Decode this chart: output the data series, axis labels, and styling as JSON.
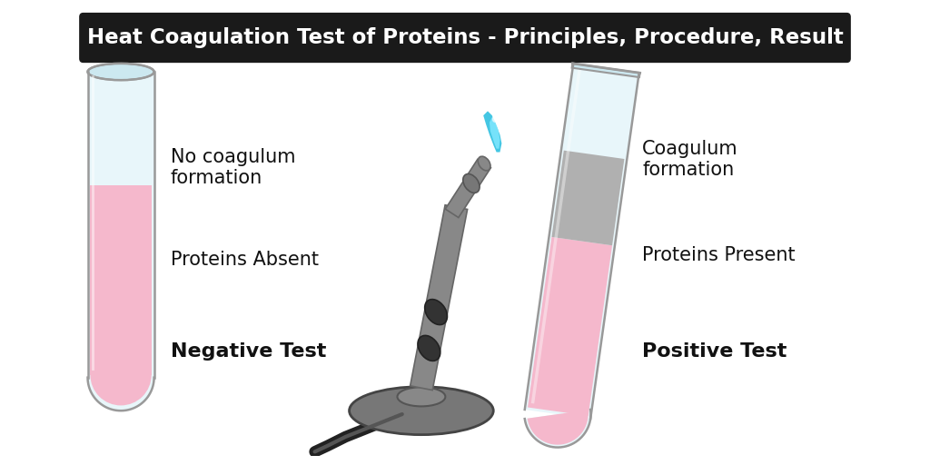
{
  "title": "Heat Coagulation Test of Proteins - Principles, Procedure, Result",
  "title_bg": "#1a1a1a",
  "title_color": "#ffffff",
  "title_fontsize": 16.5,
  "bg_color": "#ffffff",
  "left_labels": [
    "No coagulum\nformation",
    "Proteins Absent",
    "Negative Test"
  ],
  "right_labels": [
    "Coagulum\nformation",
    "Proteins Present",
    "Positive Test"
  ],
  "label_color": "#111111",
  "tube_glass_color": "#e8f6fa",
  "tube_glass_highlight": "#cce8f0",
  "tube_outline_color": "#999999",
  "tube_pink_color": "#f5b8cc",
  "tube_pink_light": "#f9ccd8",
  "tube_coagulum_color": "#b0b0b0",
  "tube_bottom_color": "#dff0f7",
  "burner_main": "#888888",
  "burner_dark": "#666666",
  "burner_darkest": "#333333",
  "base_color": "#777777",
  "base_dark": "#555555",
  "hose_color": "#222222",
  "flame_outer": "#30c0e0",
  "flame_inner": "#80e8ff",
  "flame_tip": "#ffffff"
}
